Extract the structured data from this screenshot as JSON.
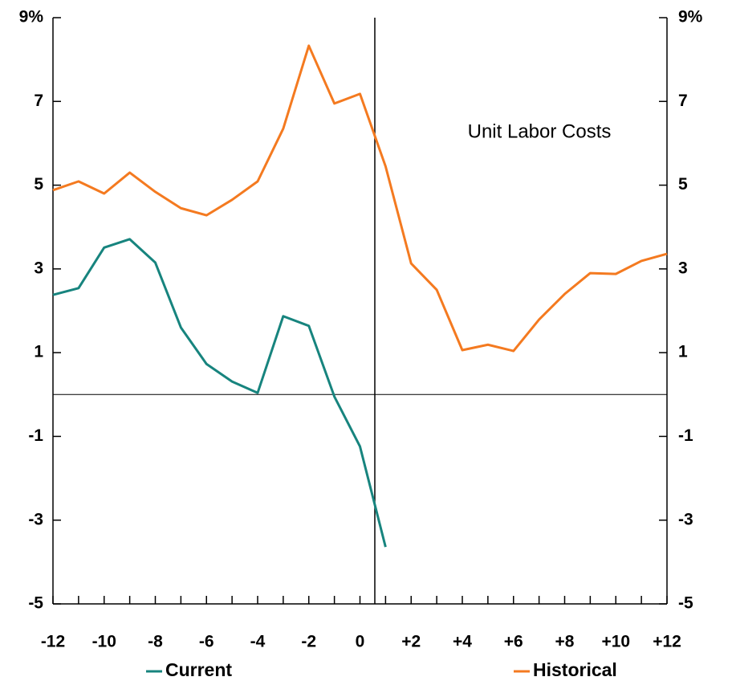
{
  "chart_data": {
    "type": "line",
    "annotation": "Unit Labor Costs",
    "x": [
      -12,
      -11,
      -10,
      -9,
      -8,
      -7,
      -6,
      -5,
      -4,
      -3,
      -2,
      -1,
      0,
      1,
      2,
      3,
      4,
      5,
      6,
      7,
      8,
      9,
      10,
      11,
      12
    ],
    "series": [
      {
        "name": "Current",
        "color": "#17847e",
        "values": [
          2.38,
          2.54,
          3.51,
          3.71,
          3.15,
          1.6,
          0.73,
          0.31,
          0.04,
          1.87,
          1.64,
          -0.05,
          -1.24,
          -3.64,
          null,
          null,
          null,
          null,
          null,
          null,
          null,
          null,
          null,
          null,
          null
        ]
      },
      {
        "name": "Historical",
        "color": "#f47a20",
        "values": [
          4.88,
          5.09,
          4.8,
          5.3,
          4.84,
          4.45,
          4.28,
          4.65,
          5.09,
          6.35,
          8.33,
          6.95,
          7.18,
          5.45,
          3.13,
          2.5,
          1.06,
          1.19,
          1.04,
          1.79,
          2.4,
          2.9,
          2.88,
          3.19,
          3.36
        ]
      }
    ],
    "xlim": [
      -12,
      12
    ],
    "xticks": [
      -12,
      -10,
      -8,
      -6,
      -4,
      -2,
      0,
      {
        "value": 2,
        "label": "+2"
      },
      {
        "value": 4,
        "label": "+4"
      },
      {
        "value": 6,
        "label": "+6"
      },
      {
        "value": 8,
        "label": "+8"
      },
      {
        "value": 10,
        "label": "+10"
      },
      {
        "value": 12,
        "label": "+12"
      }
    ],
    "xminor_ticks": [
      -11,
      -9,
      -7,
      -5,
      -3,
      -1,
      1,
      3,
      5,
      7,
      9,
      11
    ],
    "ylim": [
      -5,
      9
    ],
    "yticks": [
      -5,
      -3,
      -1,
      1,
      3,
      5,
      7,
      {
        "value": 9,
        "label": "9%"
      }
    ],
    "hline": 0,
    "vline": 0.58,
    "legend": "bottom"
  }
}
